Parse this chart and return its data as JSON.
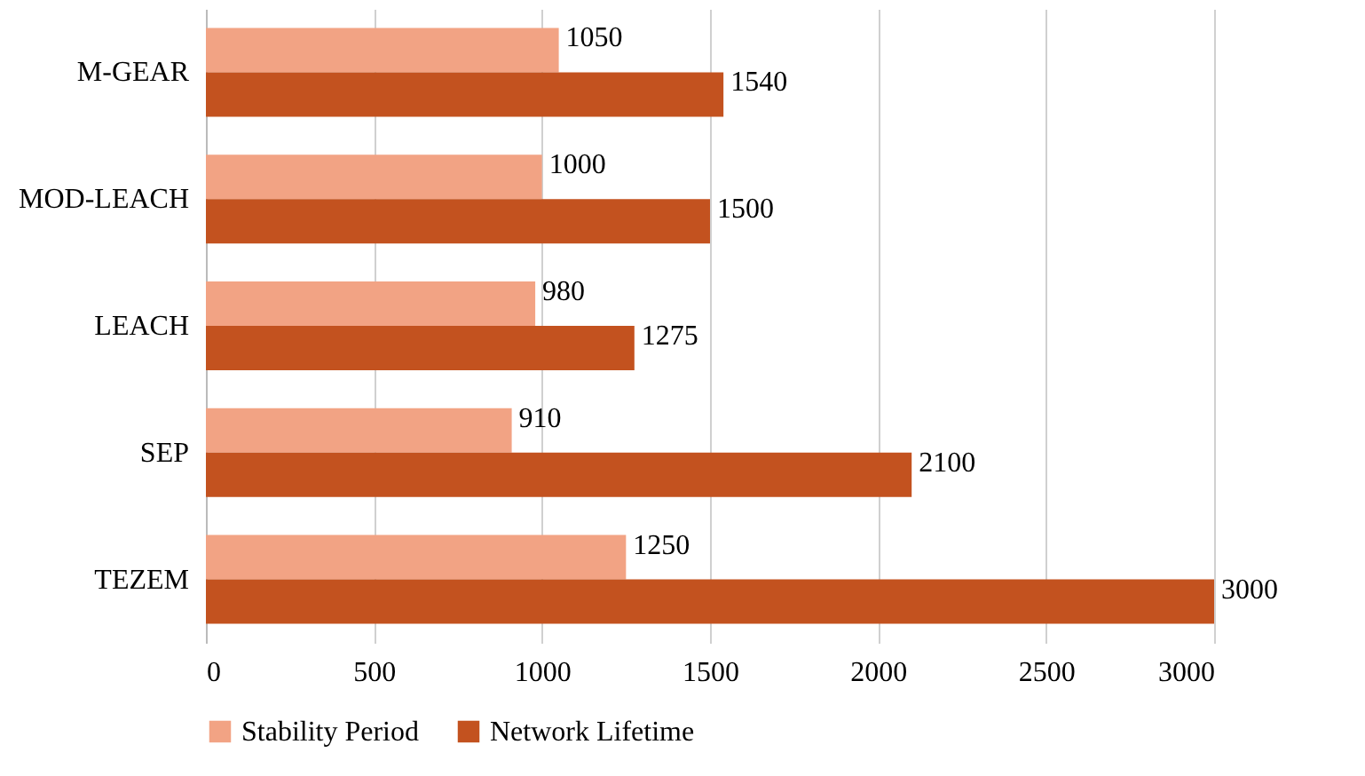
{
  "chart_data": {
    "type": "bar",
    "orientation": "horizontal",
    "categories": [
      "M-GEAR",
      "MOD-LEACH",
      "LEACH",
      "SEP",
      "TEZEM"
    ],
    "series": [
      {
        "name": "Stability Period",
        "color": "#f2a384",
        "values": [
          1050,
          1000,
          980,
          910,
          1250
        ]
      },
      {
        "name": "Network Lifetime",
        "color": "#c3521f",
        "values": [
          1540,
          1500,
          1275,
          2100,
          3000
        ]
      }
    ],
    "xlim": [
      0,
      3000
    ],
    "xticks": [
      0,
      500,
      1000,
      1500,
      2000,
      2500,
      3000
    ],
    "grid": "x",
    "legend": "bottom",
    "data_labels": true
  }
}
